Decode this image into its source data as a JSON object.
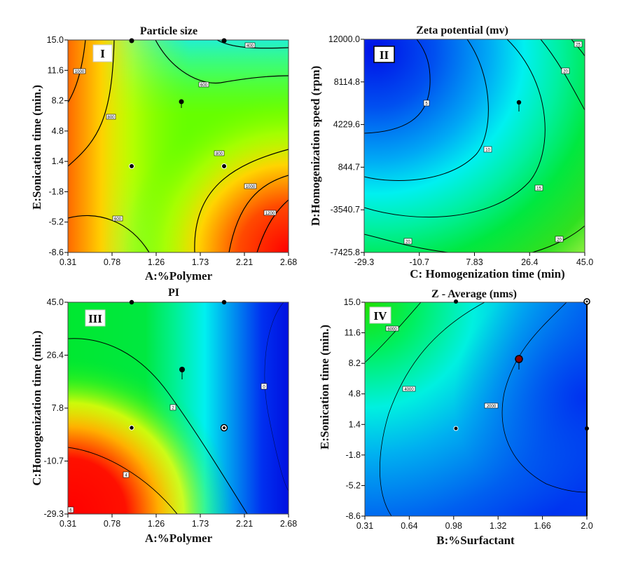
{
  "figure": {
    "description": "Four contour plots of a response surface design"
  },
  "chart_data": [
    {
      "type": "heatmap",
      "subtype": "contour",
      "panel": "I",
      "title": "Particle size",
      "xlabel": "A:%Polymer",
      "ylabel": "E:Sonication time (min.)",
      "xlim": [
        0.31,
        2.68
      ],
      "ylim": [
        -8.6,
        15.0
      ],
      "xticks": [
        "0.31",
        "0.78",
        "1.26",
        "1.73",
        "2.21",
        "2.68"
      ],
      "yticks": [
        "-8.6",
        "-5.2",
        "-1.8",
        "1.4",
        "4.8",
        "8.2",
        "11.6",
        "15.0"
      ],
      "colorscale": "blue-cyan-green-yellow-red (low to high)",
      "contour_labels": [
        "1000",
        "800",
        "600",
        "400",
        "800",
        "1000",
        "1200",
        "600"
      ],
      "contour_levels": [
        400,
        600,
        800,
        1000,
        1200
      ],
      "design_points": [
        [
          0.98,
          15.0
        ],
        [
          1.98,
          15.0
        ],
        [
          1.55,
          8.2
        ],
        [
          0.98,
          1.0
        ],
        [
          1.98,
          1.0
        ]
      ]
    },
    {
      "type": "heatmap",
      "subtype": "contour",
      "panel": "II",
      "title": "Zeta potential (mv)",
      "xlabel": "C: Homogenization time (min)",
      "ylabel": "D:Homogenization speed (rpm)",
      "xlim": [
        -29.3,
        45.0
      ],
      "ylim": [
        -7425.8,
        12000.0
      ],
      "xticks": [
        "-29.3",
        "-10.7",
        "7.83",
        "26.4",
        "45.0"
      ],
      "yticks": [
        "-7425.8",
        "-3540.7",
        "844.7",
        "4229.6",
        "8114.8",
        "12000.0"
      ],
      "colorscale": "blue-cyan-green-yellow (low to high)",
      "contour_labels": [
        "5",
        "10",
        "15",
        "20",
        "25",
        "20",
        "20"
      ],
      "contour_levels": [
        5,
        10,
        15,
        20,
        25
      ],
      "design_points": [
        [
          23.5,
          6000
        ]
      ]
    },
    {
      "type": "heatmap",
      "subtype": "contour",
      "panel": "III",
      "title": "PI",
      "xlabel": "A:%Polymer",
      "ylabel": "C:Homogenization time (min.)",
      "xlim": [
        0.31,
        2.68
      ],
      "ylim": [
        -29.3,
        45.0
      ],
      "xticks": [
        "0.31",
        "0.78",
        "1.26",
        "1.73",
        "2.21",
        "2.68"
      ],
      "yticks": [
        "-29.3",
        "-10.7",
        "7.8",
        "26.4",
        "45.0"
      ],
      "colorscale": "blue-cyan-green-yellow-red (low to high)",
      "contour_labels": [
        "2",
        "4",
        "6",
        "0"
      ],
      "contour_levels": [
        0,
        2,
        4,
        6
      ],
      "design_points": [
        [
          0.98,
          45.0
        ],
        [
          1.98,
          45.0
        ],
        [
          1.55,
          21.0
        ],
        [
          0.98,
          0.0
        ],
        [
          1.98,
          0.0
        ]
      ]
    },
    {
      "type": "heatmap",
      "subtype": "contour",
      "panel": "IV",
      "title": "Z - Average (nms)",
      "xlabel": "B:%Surfactant",
      "ylabel": "E:Sonication time (min.)",
      "xlim": [
        0.31,
        2.0
      ],
      "ylim": [
        -8.6,
        15.0
      ],
      "xticks": [
        "0.31",
        "0.64",
        "0.98",
        "1.32",
        "1.66",
        "2.0"
      ],
      "yticks": [
        "-8.6",
        "-5.2",
        "-1.8",
        "1.4",
        "4.8",
        "8.2",
        "11.6",
        "15.0"
      ],
      "colorscale": "blue-cyan-green (low to high)",
      "contour_labels": [
        "6000",
        "4000",
        "2000"
      ],
      "contour_levels": [
        2000,
        4000,
        6000
      ],
      "design_points": [
        [
          0.98,
          15.0
        ],
        [
          2.0,
          15.0
        ],
        [
          1.45,
          8.8
        ],
        [
          0.98,
          1.0
        ],
        [
          2.0,
          1.0
        ]
      ]
    }
  ]
}
